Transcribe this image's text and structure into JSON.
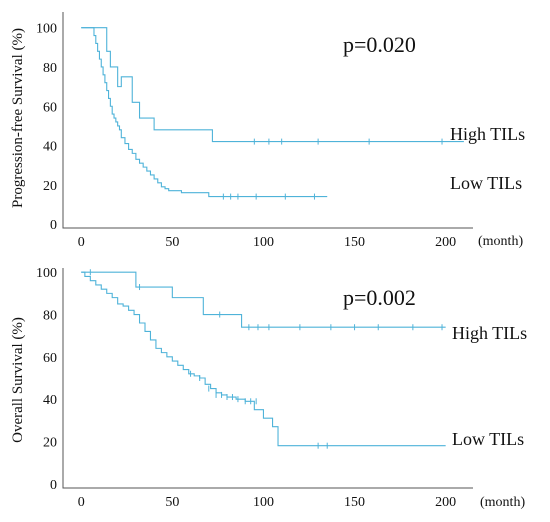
{
  "chart_data": [
    {
      "type": "line",
      "subtype": "kaplan-meier-step",
      "ylabel": "Progression-free Survival (%)",
      "xunit": "(month)",
      "pvalue": "p=0.020",
      "xlim": [
        -10,
        215
      ],
      "ylim": [
        -2,
        108
      ],
      "xticks": [
        0,
        50,
        100,
        150,
        200
      ],
      "yticks": [
        0,
        20,
        40,
        60,
        80,
        100
      ],
      "grid": false,
      "series": [
        {
          "name": "High TILs",
          "color": "#4fb3d9",
          "x": [
            0,
            12,
            14,
            16,
            20,
            22,
            28,
            32,
            40,
            72,
            210
          ],
          "y": [
            100,
            100,
            88,
            80,
            70,
            75,
            62,
            54,
            48,
            42,
            42
          ],
          "censored_x": [
            95,
            103,
            110,
            130,
            158,
            198
          ],
          "censored_y": [
            42,
            42,
            42,
            42,
            42,
            42
          ]
        },
        {
          "name": "Low TILs",
          "color": "#4fb3d9",
          "x": [
            0,
            6,
            7,
            8,
            9,
            10,
            11,
            12,
            13,
            14,
            15,
            16,
            17,
            18,
            19,
            20,
            21,
            22,
            24,
            26,
            28,
            30,
            32,
            34,
            36,
            38,
            40,
            42,
            44,
            46,
            48,
            50,
            55,
            65,
            70,
            135
          ],
          "y": [
            100,
            100,
            96,
            92,
            88,
            84,
            80,
            76,
            72,
            68,
            64,
            60,
            56,
            54,
            52,
            50,
            48,
            44,
            41,
            38,
            36,
            33,
            31,
            29,
            27,
            25,
            23,
            21,
            19,
            18,
            17,
            17,
            16,
            16,
            14,
            14
          ],
          "censored_x": [
            78,
            82,
            86,
            96,
            112,
            128
          ],
          "censored_y": [
            14,
            14,
            14,
            14,
            14,
            14
          ]
        }
      ]
    },
    {
      "type": "line",
      "subtype": "kaplan-meier-step",
      "ylabel": "Overall Survival (%)",
      "xunit": "(month)",
      "pvalue": "p=0.002",
      "xlim": [
        -10,
        215
      ],
      "ylim": [
        -2,
        102
      ],
      "xticks": [
        0,
        50,
        100,
        150,
        200
      ],
      "yticks": [
        0,
        20,
        40,
        60,
        80,
        100
      ],
      "grid": false,
      "series": [
        {
          "name": "High TILs",
          "color": "#4fb3d9",
          "x": [
            0,
            30,
            50,
            67,
            88,
            200
          ],
          "y": [
            100,
            93,
            88,
            80,
            74,
            74
          ],
          "censored_x": [
            5,
            32,
            76,
            92,
            97,
            103,
            120,
            137,
            150,
            163,
            182,
            198
          ],
          "censored_y": [
            100,
            93,
            80,
            74,
            74,
            74,
            74,
            74,
            74,
            74,
            74,
            74
          ]
        },
        {
          "name": "Low TILs",
          "color": "#4fb3d9",
          "x": [
            0,
            2,
            5,
            8,
            11,
            14,
            17,
            20,
            23,
            26,
            29,
            32,
            35,
            38,
            41,
            44,
            47,
            50,
            53,
            56,
            59,
            62,
            65,
            68,
            71,
            74,
            77,
            80,
            85,
            90,
            95,
            100,
            105,
            108,
            200
          ],
          "y": [
            100,
            98,
            96,
            94,
            92,
            90,
            88,
            85,
            84,
            82,
            80,
            76,
            72,
            68,
            64,
            62,
            60,
            58,
            56,
            54,
            52,
            51,
            50,
            47,
            45,
            43,
            42,
            41,
            40,
            39,
            35,
            31,
            27,
            18,
            18
          ],
          "censored_x": [
            60,
            65,
            70,
            74,
            77,
            80,
            83,
            86,
            90,
            93,
            96,
            130,
            135
          ],
          "censored_y": [
            52,
            50,
            45,
            42,
            42,
            41,
            41,
            40,
            39,
            39,
            39,
            18,
            18
          ]
        }
      ]
    }
  ]
}
